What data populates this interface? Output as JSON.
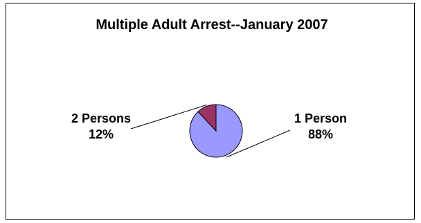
{
  "chart_data": {
    "type": "pie",
    "title": "Multiple Adult Arrest--January 2007",
    "slices": [
      {
        "label": "1 Person",
        "percent_label": "88%",
        "value": 88,
        "color": "#9999ff"
      },
      {
        "label": "2 Persons",
        "percent_label": "12%",
        "value": 12,
        "color": "#993366"
      }
    ]
  }
}
